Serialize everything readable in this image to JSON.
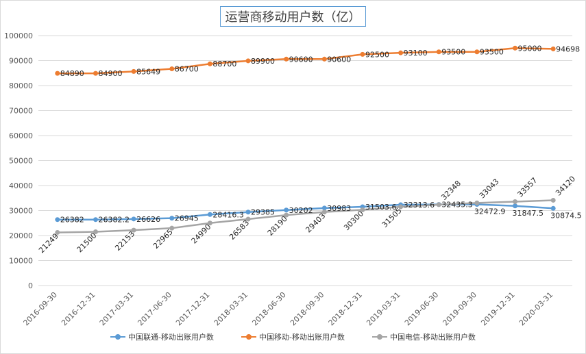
{
  "chart_data": {
    "type": "line",
    "title": "运营商移动用户数（亿）",
    "categories": [
      "2016-09-30",
      "2016-12-31",
      "2017-03-31",
      "2017-06-30",
      "2017-12-31",
      "2018-03-31",
      "2018-06-30",
      "2018-09-30",
      "2018-12-31",
      "2019-03-31",
      "2019-06-30",
      "2019-09-30",
      "2019-12-31",
      "2020-03-31"
    ],
    "ylim": [
      0,
      100000
    ],
    "yticks": [
      0,
      10000,
      20000,
      30000,
      40000,
      50000,
      60000,
      70000,
      80000,
      90000,
      100000
    ],
    "grid": true,
    "legend_position": "bottom",
    "series": [
      {
        "name": "中国联通-移动出账用户数",
        "color": "#5b9bd5",
        "values": [
          26382,
          26382.2,
          26626,
          26945,
          28416.3,
          29385,
          30202,
          30983,
          31503.6,
          32313.6,
          32435.3,
          32472.9,
          31847.5,
          30874.5
        ],
        "labels": [
          "26382",
          "26382.2",
          "26626",
          "26945",
          "28416.3",
          "29385",
          "30202",
          "30983",
          "31503.6",
          "32313.6",
          "32435.3",
          "32472.9",
          "31847.5",
          "30874.5"
        ]
      },
      {
        "name": "中国移动-移动出账用户数",
        "color": "#ed7d31",
        "values": [
          84890,
          84900,
          85649,
          86700,
          88700,
          89900,
          90600,
          90600,
          92500,
          93100,
          93500,
          93500,
          95000,
          94698
        ],
        "labels": [
          "84890",
          "84900",
          "85649",
          "86700",
          "88700",
          "89900",
          "90600",
          "90600",
          "92500",
          "93100",
          "93500",
          "93500",
          "95000",
          "94698"
        ]
      },
      {
        "name": "中国电信-移动出账用户数",
        "color": "#a5a5a5",
        "values": [
          21249,
          21500,
          22153,
          22965,
          24990,
          26583,
          28190,
          29403,
          30300,
          31505,
          32348,
          33043,
          33557,
          34120
        ],
        "labels": [
          "21249",
          "21500",
          "22153",
          "22965",
          "24990",
          "26583",
          "28190",
          "29403",
          "30300",
          "31505",
          "32348",
          "33043",
          "33557",
          "34120"
        ]
      }
    ]
  }
}
